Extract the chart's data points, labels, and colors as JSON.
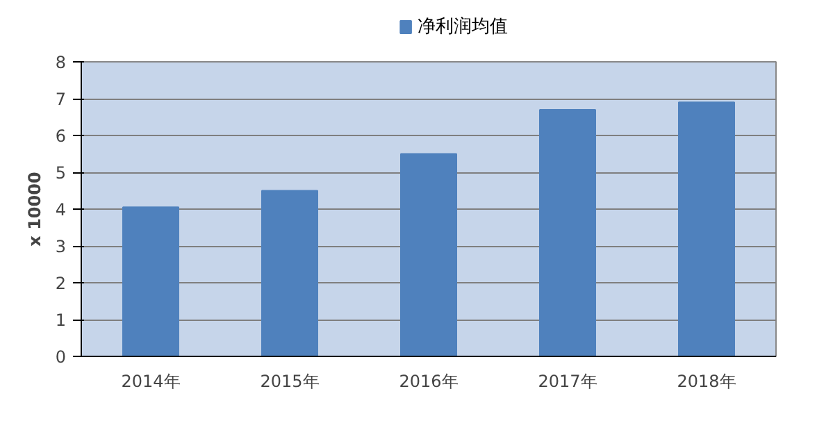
{
  "chart_data": {
    "type": "bar",
    "ylabel": "x 10000",
    "categories": [
      "2014年",
      "2015年",
      "2016年",
      "2017年",
      "2018年"
    ],
    "series": [
      {
        "name": "净利润均值",
        "color": "#4f81bd",
        "values": [
          4.05,
          4.5,
          5.5,
          6.7,
          6.9
        ]
      }
    ],
    "ylim": [
      0,
      8
    ],
    "yticks": [
      0,
      1,
      2,
      3,
      4,
      5,
      6,
      7,
      8
    ],
    "grid": "y",
    "legend": "top"
  }
}
